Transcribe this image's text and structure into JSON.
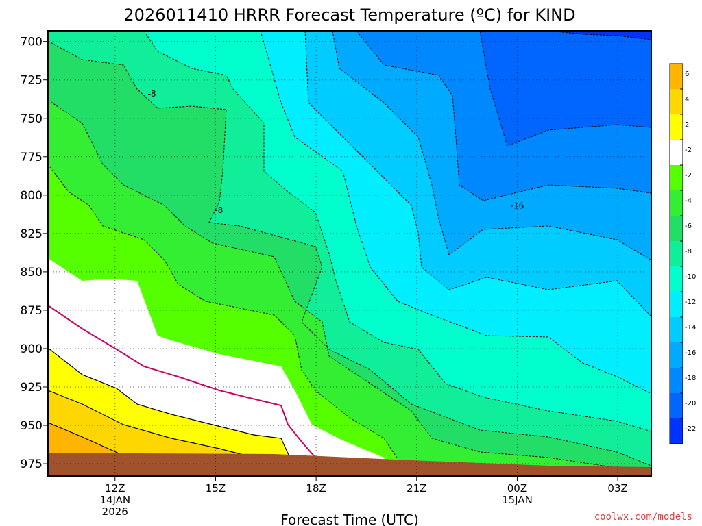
{
  "chart_data": {
    "type": "contour",
    "title": "2026011410 HRRR Forecast Temperature (ºC) for KIND",
    "xlabel": "Forecast Time (UTC)",
    "ylabel": "",
    "credit": "coolwx.com/models",
    "y_axis": {
      "ticks": [
        "700",
        "725",
        "750",
        "775",
        "800",
        "825",
        "850",
        "875",
        "900",
        "925",
        "950",
        "975"
      ],
      "reversed": true,
      "range": [
        693,
        983
      ]
    },
    "x_axis": {
      "ticks": [
        {
          "label": "12Z",
          "sub": [
            "14JAN",
            "2026"
          ]
        },
        {
          "label": "15Z",
          "sub": []
        },
        {
          "label": "18Z",
          "sub": []
        },
        {
          "label": "21Z",
          "sub": []
        },
        {
          "label": "00Z",
          "sub": [
            "15JAN"
          ]
        },
        {
          "label": "03Z",
          "sub": []
        }
      ],
      "range_hours": [
        10,
        28
      ]
    },
    "grid": true,
    "colorbar": {
      "labels": [
        "6",
        "4",
        "2",
        "-2",
        "-2",
        "-4",
        "-6",
        "-8",
        "-10",
        "-12",
        "-14",
        "-16",
        "-18",
        "-20",
        "-22"
      ],
      "colors": [
        "#ffb400",
        "#ffd700",
        "#ffff00",
        "#ffffff",
        "#55ff00",
        "#33ee33",
        "#22dd66",
        "#11ee99",
        "#00ffcc",
        "#00eeff",
        "#00ccff",
        "#00aaff",
        "#0088ff",
        "#0066ff",
        "#0033ff"
      ]
    },
    "contour_labels": [
      {
        "text": "-8",
        "x": 13.1,
        "p": 734
      },
      {
        "text": "-8",
        "x": 15.1,
        "p": 810
      },
      {
        "text": "-16",
        "x": 24.0,
        "p": 807
      }
    ],
    "terrain_color": "#a0522d"
  }
}
